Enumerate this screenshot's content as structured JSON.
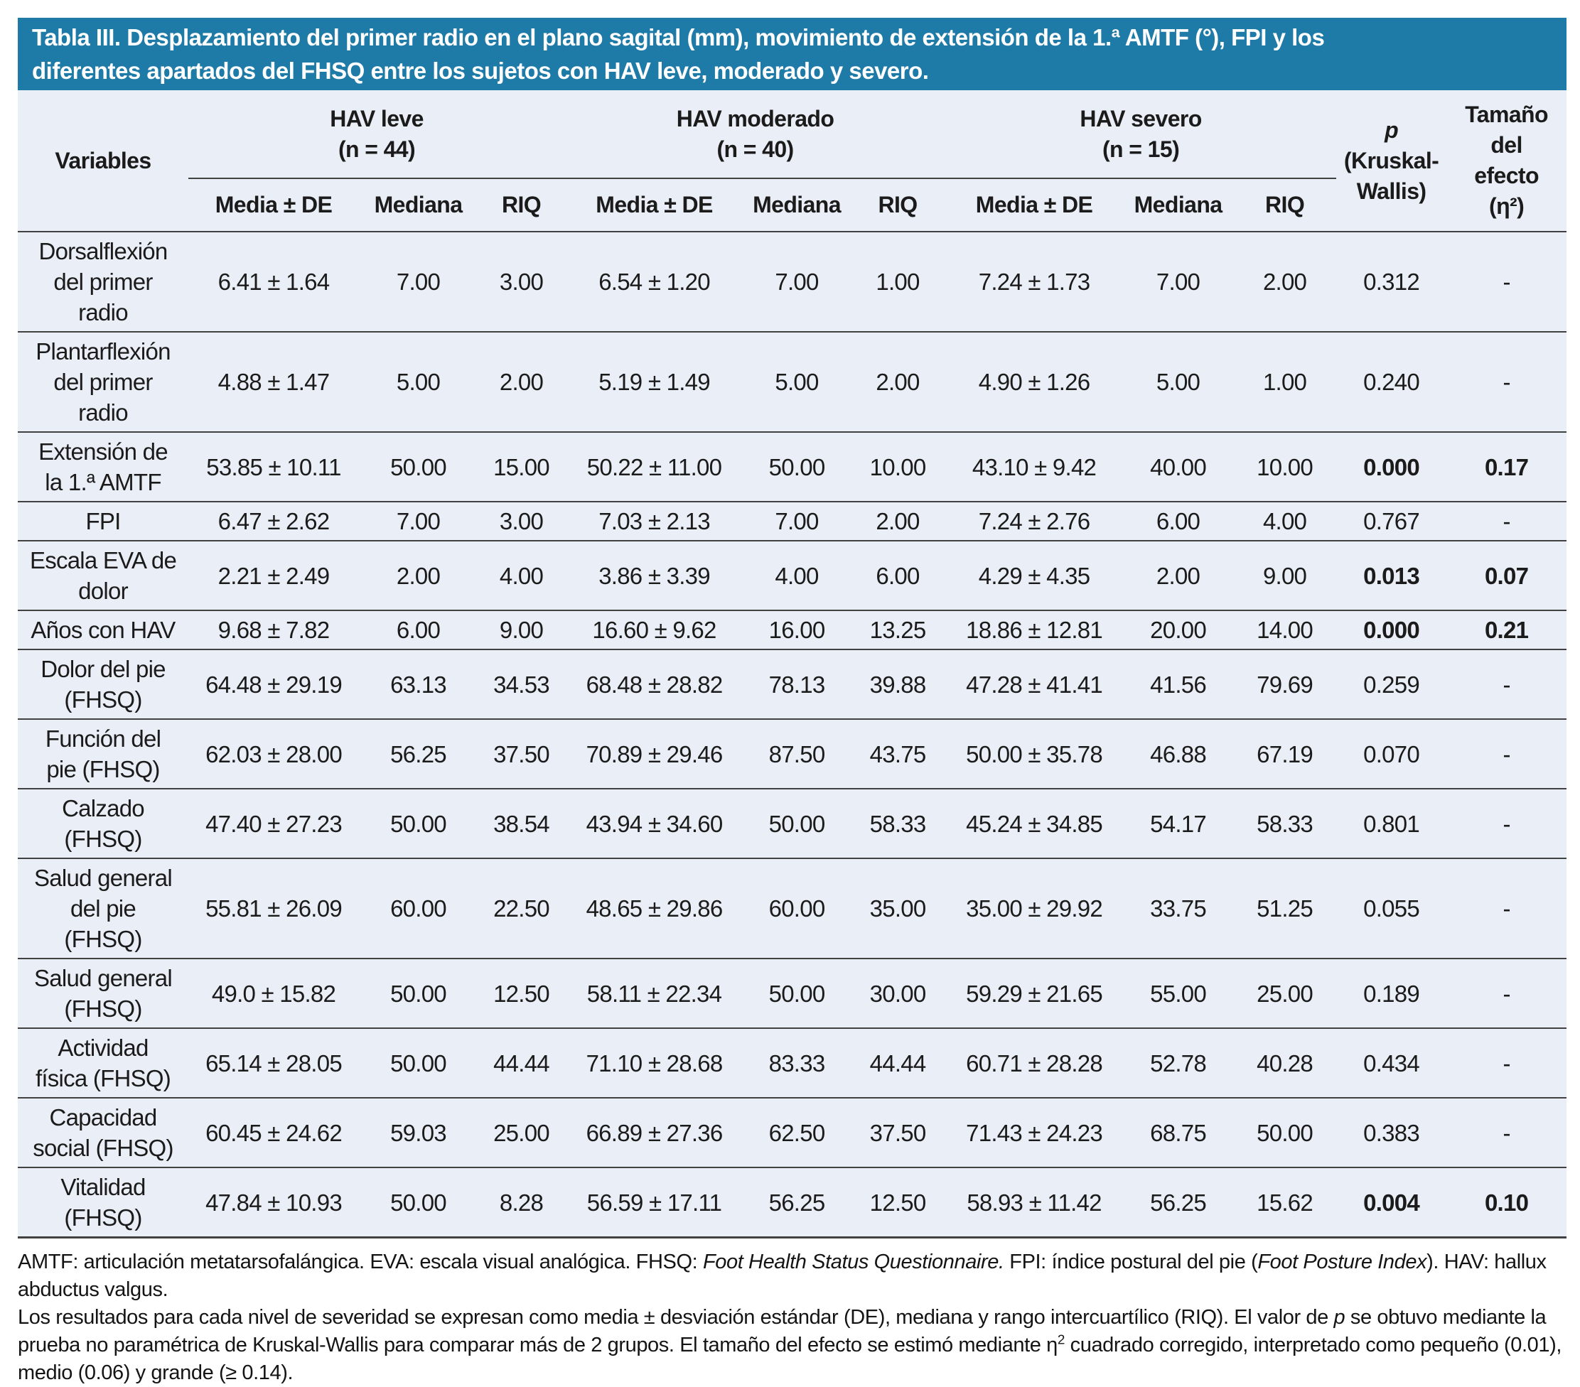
{
  "title": "Tabla III. Desplazamiento del primer radio en el plano sagital (mm), movimiento de extensión de la 1.ª AMTF (°), FPI y los\ndiferentes apartados del FHSQ entre los sujetos con HAV leve, moderado y severo.",
  "colors": {
    "title_bar": "#1e7aa7",
    "title_text": "#ffffff",
    "table_background": "#eaeef6",
    "rule_color": "#414141",
    "body_text": "#1b1b1b"
  },
  "header": {
    "variables_label": "Variables",
    "groups": [
      {
        "label": "HAV leve\n(n = 44)"
      },
      {
        "label": "HAV moderado\n(n = 40)"
      },
      {
        "label": "HAV severo\n(n = 15)"
      }
    ],
    "stat_labels": [
      "Media ± DE",
      "Mediana",
      "RIQ"
    ],
    "p_italic": "p",
    "p_rest": "(Kruskal-\nWallis)",
    "effect_label": "Tamaño\ndel\nefecto\n(η²)"
  },
  "table": {
    "rows": [
      {
        "variable": "Dorsalflexión\ndel primer\nradio",
        "cells": [
          "6.41 ± 1.64",
          "7.00",
          "3.00",
          "6.54 ± 1.20",
          "7.00",
          "1.00",
          "7.24 ± 1.73",
          "7.00",
          "2.00"
        ],
        "p": "0.312",
        "effect": "-",
        "significant": false
      },
      {
        "variable": "Plantarflexión\ndel primer\nradio",
        "cells": [
          "4.88 ± 1.47",
          "5.00",
          "2.00",
          "5.19 ± 1.49",
          "5.00",
          "2.00",
          "4.90 ± 1.26",
          "5.00",
          "1.00"
        ],
        "p": "0.240",
        "effect": "-",
        "significant": false
      },
      {
        "variable": "Extensión de\nla 1.ª AMTF",
        "cells": [
          "53.85 ± 10.11",
          "50.00",
          "15.00",
          "50.22 ± 11.00",
          "50.00",
          "10.00",
          "43.10 ± 9.42",
          "40.00",
          "10.00"
        ],
        "p": "0.000",
        "effect": "0.17",
        "significant": true
      },
      {
        "variable": "FPI",
        "cells": [
          "6.47 ± 2.62",
          "7.00",
          "3.00",
          "7.03 ± 2.13",
          "7.00",
          "2.00",
          "7.24 ± 2.76",
          "6.00",
          "4.00"
        ],
        "p": "0.767",
        "effect": "-",
        "significant": false
      },
      {
        "variable": "Escala EVA de\ndolor",
        "cells": [
          "2.21 ± 2.49",
          "2.00",
          "4.00",
          "3.86 ± 3.39",
          "4.00",
          "6.00",
          "4.29 ± 4.35",
          "2.00",
          "9.00"
        ],
        "p": "0.013",
        "effect": "0.07",
        "significant": true
      },
      {
        "variable": "Años con HAV",
        "cells": [
          "9.68 ± 7.82",
          "6.00",
          "9.00",
          "16.60 ± 9.62",
          "16.00",
          "13.25",
          "18.86 ± 12.81",
          "20.00",
          "14.00"
        ],
        "p": "0.000",
        "effect": "0.21",
        "significant": true
      },
      {
        "variable": "Dolor del pie\n(FHSQ)",
        "cells": [
          "64.48 ± 29.19",
          "63.13",
          "34.53",
          "68.48 ± 28.82",
          "78.13",
          "39.88",
          "47.28 ± 41.41",
          "41.56",
          "79.69"
        ],
        "p": "0.259",
        "effect": "-",
        "significant": false
      },
      {
        "variable": "Función del\npie (FHSQ)",
        "cells": [
          "62.03 ± 28.00",
          "56.25",
          "37.50",
          "70.89 ± 29.46",
          "87.50",
          "43.75",
          "50.00 ± 35.78",
          "46.88",
          "67.19"
        ],
        "p": "0.070",
        "effect": "-",
        "significant": false
      },
      {
        "variable": "Calzado\n(FHSQ)",
        "cells": [
          "47.40 ± 27.23",
          "50.00",
          "38.54",
          "43.94 ± 34.60",
          "50.00",
          "58.33",
          "45.24 ± 34.85",
          "54.17",
          "58.33"
        ],
        "p": "0.801",
        "effect": "-",
        "significant": false
      },
      {
        "variable": "Salud general\ndel pie\n(FHSQ)",
        "cells": [
          "55.81 ± 26.09",
          "60.00",
          "22.50",
          "48.65 ± 29.86",
          "60.00",
          "35.00",
          "35.00 ± 29.92",
          "33.75",
          "51.25"
        ],
        "p": "0.055",
        "effect": "-",
        "significant": false
      },
      {
        "variable": "Salud general\n(FHSQ)",
        "cells": [
          "49.0 ± 15.82",
          "50.00",
          "12.50",
          "58.11 ± 22.34",
          "50.00",
          "30.00",
          "59.29 ± 21.65",
          "55.00",
          "25.00"
        ],
        "p": "0.189",
        "effect": "-",
        "significant": false
      },
      {
        "variable": "Actividad\nfísica (FHSQ)",
        "cells": [
          "65.14 ± 28.05",
          "50.00",
          "44.44",
          "71.10 ± 28.68",
          "83.33",
          "44.44",
          "60.71 ± 28.28",
          "52.78",
          "40.28"
        ],
        "p": "0.434",
        "effect": "-",
        "significant": false
      },
      {
        "variable": "Capacidad\nsocial (FHSQ)",
        "cells": [
          "60.45 ± 24.62",
          "59.03",
          "25.00",
          "66.89 ± 27.36",
          "62.50",
          "37.50",
          "71.43 ± 24.23",
          "68.75",
          "50.00"
        ],
        "p": "0.383",
        "effect": "-",
        "significant": false
      },
      {
        "variable": "Vitalidad\n(FHSQ)",
        "cells": [
          "47.84 ± 10.93",
          "50.00",
          "8.28",
          "56.59 ± 17.11",
          "56.25",
          "12.50",
          "58.93 ± 11.42",
          "56.25",
          "15.62"
        ],
        "p": "0.004",
        "effect": "0.10",
        "significant": true
      }
    ]
  },
  "footnotes": [
    [
      {
        "t": "AMTF: articulación metatarsofalángica. EVA: escala visual analógica. FHSQ: "
      },
      {
        "t": "Foot Health Status Questionnaire.",
        "i": true
      },
      {
        "t": " FPI: índice postural del pie ("
      },
      {
        "t": "Foot Posture Index",
        "i": true
      },
      {
        "t": "). HAV: hallux abductus valgus."
      }
    ],
    [
      {
        "t": "Los resultados para cada nivel de severidad se expresan como media ± desviación estándar (DE), mediana y rango intercuartílico (RIQ). El valor de "
      },
      {
        "t": "p",
        "i": true
      },
      {
        "t": " se obtuvo mediante la prueba no paramétrica de Kruskal-Wallis para comparar más de 2 grupos. El tamaño del efecto se estimó mediante η"
      },
      {
        "t": "2",
        "sup": true
      },
      {
        "t": " cuadrado corregido, interpretado como pequeño (0.01), medio (0.06) y grande (≥ 0.14)."
      }
    ]
  ]
}
